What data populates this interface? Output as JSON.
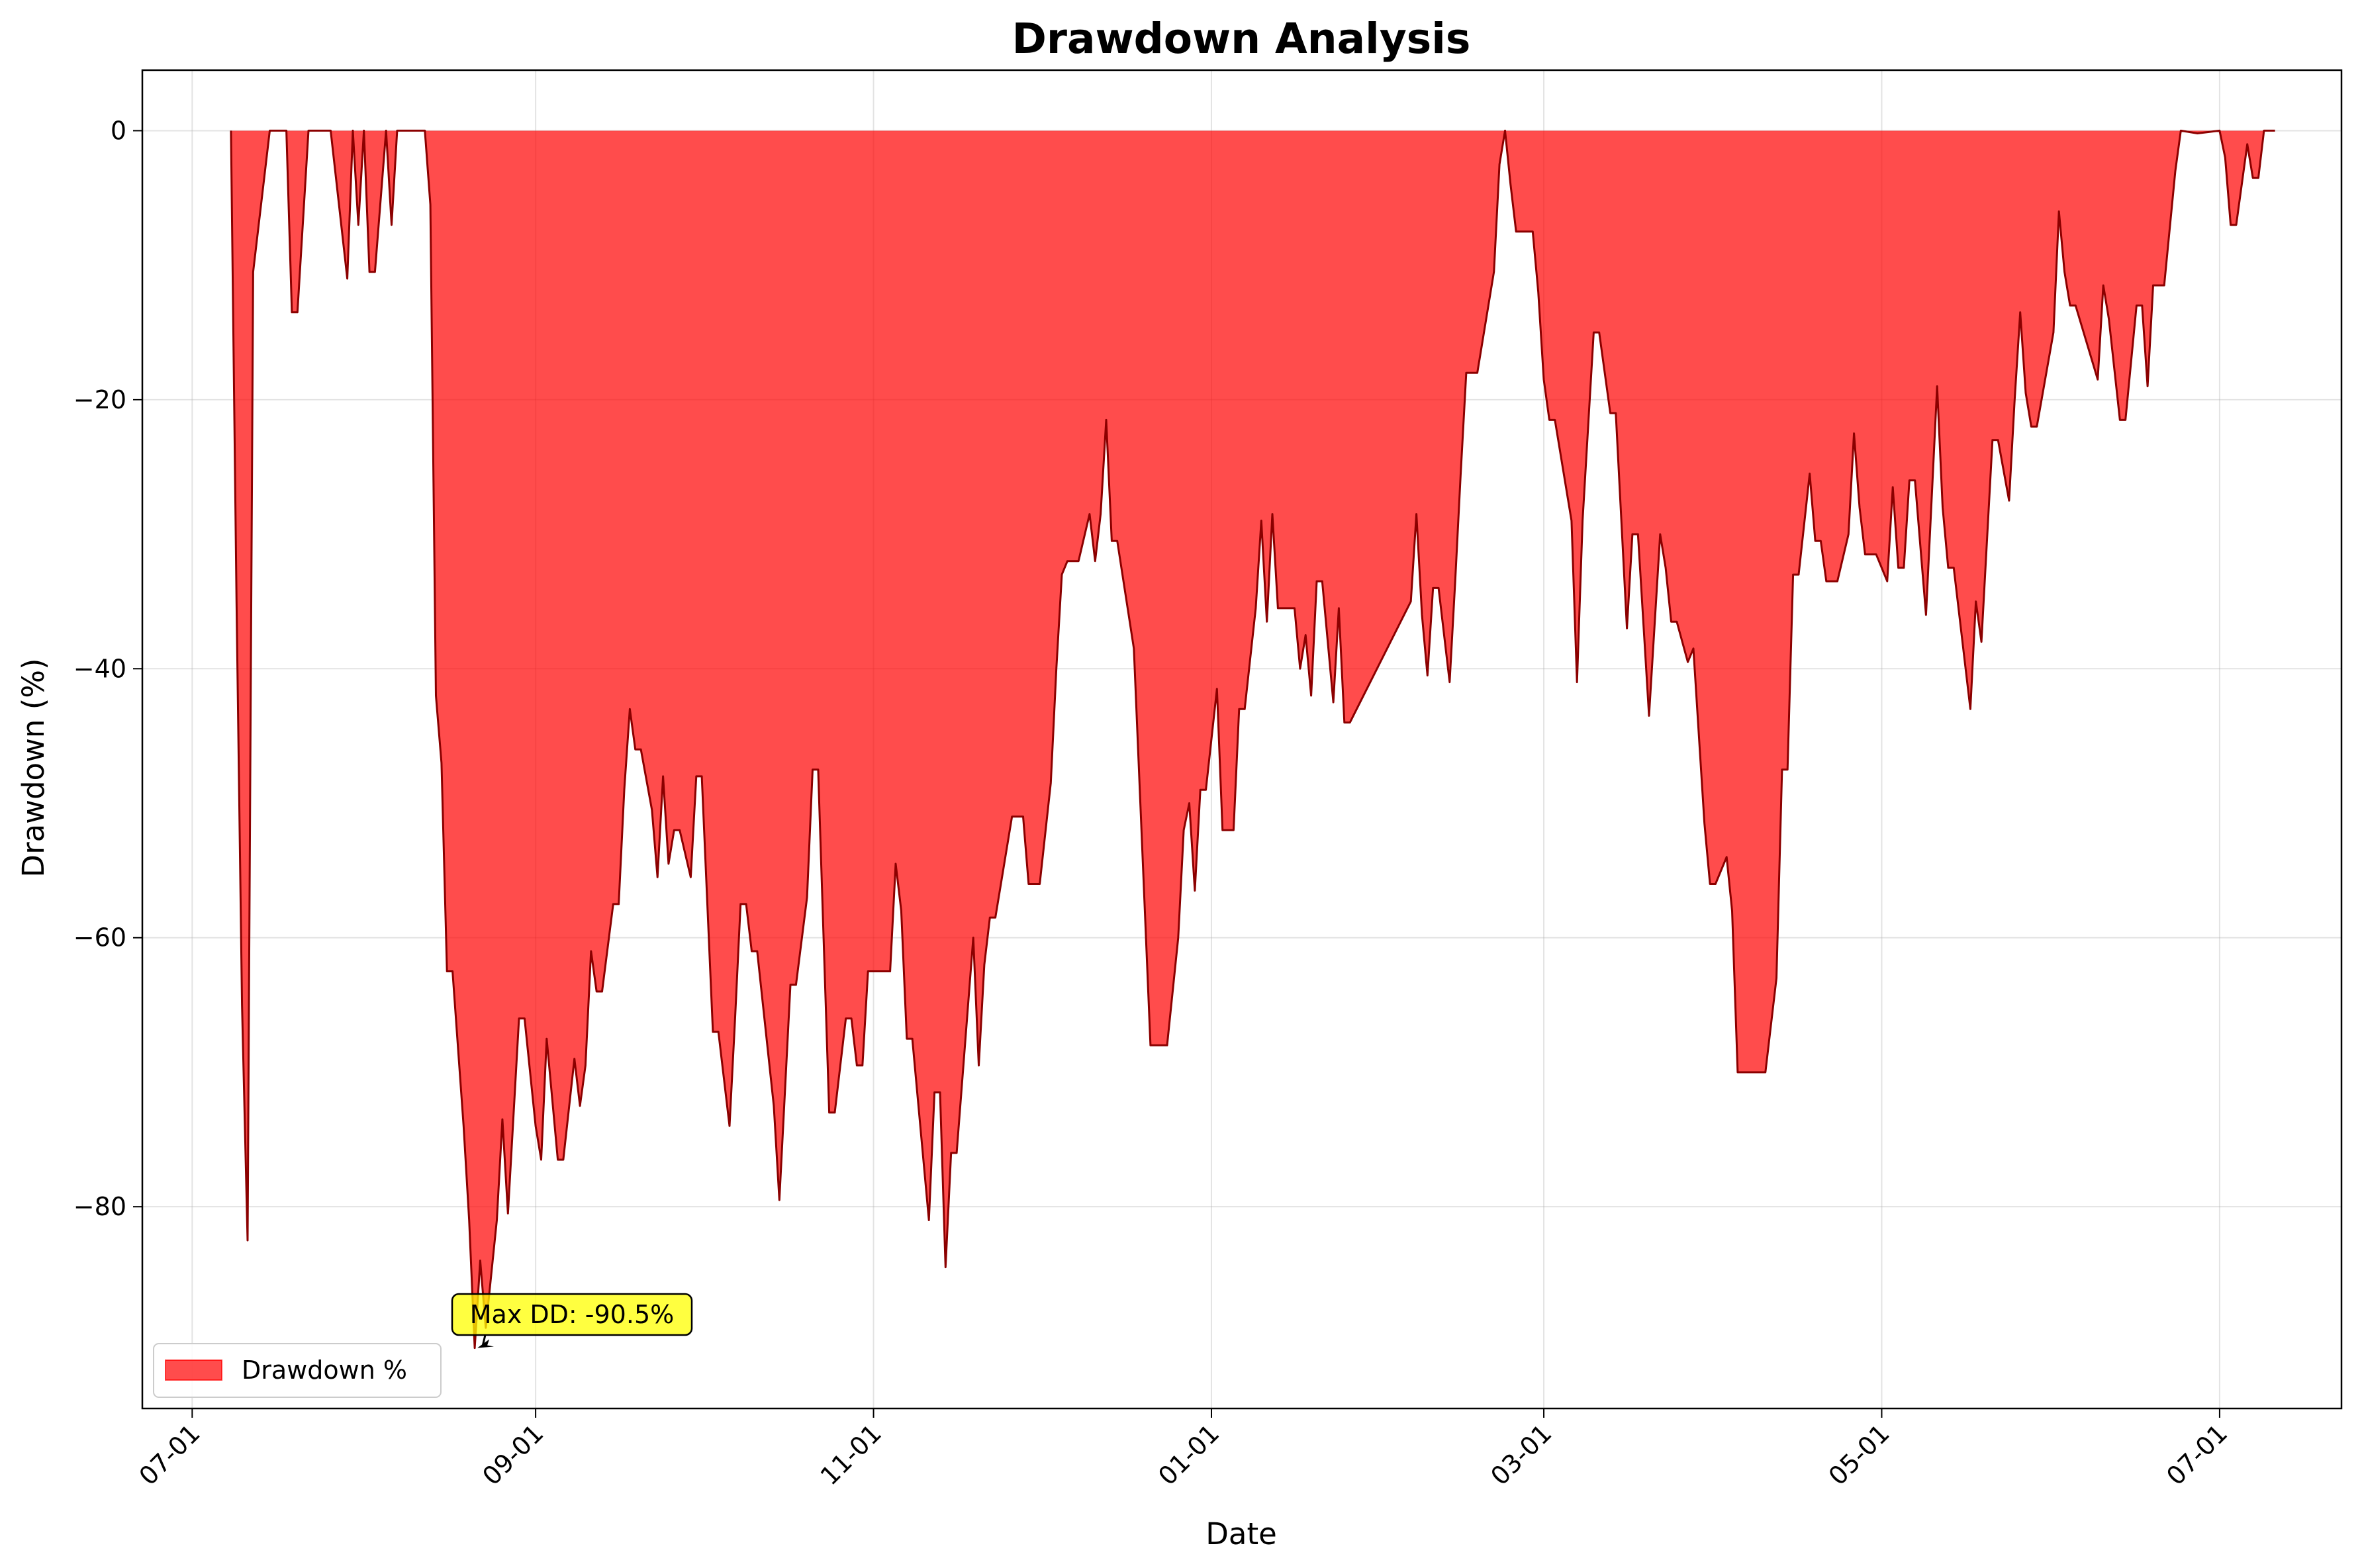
{
  "chart_data": {
    "type": "area",
    "title": "Drawdown Analysis",
    "xlabel": "Date",
    "ylabel": "Drawdown (%)",
    "x_ticks": [
      "07-01",
      "09-01",
      "11-01",
      "01-01",
      "03-01",
      "05-01",
      "07-01"
    ],
    "y_ticks": [
      0,
      -20,
      -40,
      -60,
      -80
    ],
    "ylim": [
      -95,
      4.5
    ],
    "grid": true,
    "legend_position": "lower-left",
    "series": [
      {
        "name": "Drawdown %",
        "fill_color": "#ff0000",
        "fill_opacity": 0.7,
        "line_color": "#8b0000",
        "points": [
          [
            "2023-07-08",
            0
          ],
          [
            "2023-07-09",
            -35
          ],
          [
            "2023-07-10",
            -65
          ],
          [
            "2023-07-11",
            -82.5
          ],
          [
            "2023-07-12",
            -10.5
          ],
          [
            "2023-07-15",
            0
          ],
          [
            "2023-07-18",
            0
          ],
          [
            "2023-07-19",
            -13.5
          ],
          [
            "2023-07-20",
            -13.5
          ],
          [
            "2023-07-22",
            0
          ],
          [
            "2023-07-26",
            0
          ],
          [
            "2023-07-29",
            -11
          ],
          [
            "2023-07-30",
            0
          ],
          [
            "2023-07-31",
            -7
          ],
          [
            "2023-08-01",
            0
          ],
          [
            "2023-08-02",
            -10.5
          ],
          [
            "2023-08-03",
            -10.5
          ],
          [
            "2023-08-05",
            0
          ],
          [
            "2023-08-06",
            -7
          ],
          [
            "2023-08-07",
            0
          ],
          [
            "2023-08-10",
            0
          ],
          [
            "2023-08-12",
            0
          ],
          [
            "2023-08-13",
            -5.5
          ],
          [
            "2023-08-14",
            -42
          ],
          [
            "2023-08-15",
            -47
          ],
          [
            "2023-08-16",
            -62.5
          ],
          [
            "2023-08-17",
            -62.5
          ],
          [
            "2023-08-19",
            -74
          ],
          [
            "2023-08-20",
            -81
          ],
          [
            "2023-08-21",
            -90.5
          ],
          [
            "2023-08-22",
            -84
          ],
          [
            "2023-08-23",
            -89
          ],
          [
            "2023-08-25",
            -81
          ],
          [
            "2023-08-26",
            -73.5
          ],
          [
            "2023-08-27",
            -80.5
          ],
          [
            "2023-08-29",
            -66
          ],
          [
            "2023-08-30",
            -66
          ],
          [
            "2023-09-01",
            -74
          ],
          [
            "2023-09-02",
            -76.5
          ],
          [
            "2023-09-03",
            -67.5
          ],
          [
            "2023-09-05",
            -76.5
          ],
          [
            "2023-09-06",
            -76.5
          ],
          [
            "2023-09-08",
            -69
          ],
          [
            "2023-09-09",
            -72.5
          ],
          [
            "2023-09-10",
            -69.5
          ],
          [
            "2023-09-11",
            -61
          ],
          [
            "2023-09-12",
            -64
          ],
          [
            "2023-09-13",
            -64
          ],
          [
            "2023-09-15",
            -57.5
          ],
          [
            "2023-09-16",
            -57.5
          ],
          [
            "2023-09-17",
            -49
          ],
          [
            "2023-09-18",
            -43
          ],
          [
            "2023-09-19",
            -46
          ],
          [
            "2023-09-20",
            -46
          ],
          [
            "2023-09-22",
            -50.5
          ],
          [
            "2023-09-23",
            -55.5
          ],
          [
            "2023-09-24",
            -48
          ],
          [
            "2023-09-25",
            -54.5
          ],
          [
            "2023-09-26",
            -52
          ],
          [
            "2023-09-27",
            -52
          ],
          [
            "2023-09-29",
            -55.5
          ],
          [
            "2023-09-30",
            -48
          ],
          [
            "2023-10-01",
            -48
          ],
          [
            "2023-10-03",
            -67
          ],
          [
            "2023-10-04",
            -67
          ],
          [
            "2023-10-06",
            -74
          ],
          [
            "2023-10-07",
            -66
          ],
          [
            "2023-10-08",
            -57.5
          ],
          [
            "2023-10-09",
            -57.5
          ],
          [
            "2023-10-10",
            -61
          ],
          [
            "2023-10-11",
            -61
          ],
          [
            "2023-10-14",
            -72.5
          ],
          [
            "2023-10-15",
            -79.5
          ],
          [
            "2023-10-17",
            -63.5
          ],
          [
            "2023-10-18",
            -63.5
          ],
          [
            "2023-10-20",
            -57
          ],
          [
            "2023-10-21",
            -47.5
          ],
          [
            "2023-10-22",
            -47.5
          ],
          [
            "2023-10-24",
            -73
          ],
          [
            "2023-10-25",
            -73
          ],
          [
            "2023-10-27",
            -66
          ],
          [
            "2023-10-28",
            -66
          ],
          [
            "2023-10-29",
            -69.5
          ],
          [
            "2023-10-30",
            -69.5
          ],
          [
            "2023-10-31",
            -62.5
          ],
          [
            "2023-11-01",
            -62.5
          ],
          [
            "2023-11-04",
            -62.5
          ],
          [
            "2023-11-05",
            -54.5
          ],
          [
            "2023-11-06",
            -58
          ],
          [
            "2023-11-07",
            -67.5
          ],
          [
            "2023-11-08",
            -67.5
          ],
          [
            "2023-11-11",
            -81
          ],
          [
            "2023-11-12",
            -71.5
          ],
          [
            "2023-11-13",
            -71.5
          ],
          [
            "2023-11-14",
            -84.5
          ],
          [
            "2023-11-15",
            -76
          ],
          [
            "2023-11-16",
            -76
          ],
          [
            "2023-11-19",
            -60
          ],
          [
            "2023-11-20",
            -69.5
          ],
          [
            "2023-11-21",
            -62
          ],
          [
            "2023-11-22",
            -58.5
          ],
          [
            "2023-11-23",
            -58.5
          ],
          [
            "2023-11-26",
            -51
          ],
          [
            "2023-11-27",
            -51
          ],
          [
            "2023-11-28",
            -51
          ],
          [
            "2023-11-29",
            -56
          ],
          [
            "2023-11-30",
            -56
          ],
          [
            "2023-12-01",
            -56
          ],
          [
            "2023-12-03",
            -48.5
          ],
          [
            "2023-12-04",
            -40
          ],
          [
            "2023-12-05",
            -33
          ],
          [
            "2023-12-06",
            -32
          ],
          [
            "2023-12-07",
            -32
          ],
          [
            "2023-12-08",
            -32
          ],
          [
            "2023-12-10",
            -28.5
          ],
          [
            "2023-12-11",
            -32
          ],
          [
            "2023-12-12",
            -28.5
          ],
          [
            "2023-12-13",
            -21.5
          ],
          [
            "2023-12-14",
            -30.5
          ],
          [
            "2023-12-15",
            -30.5
          ],
          [
            "2023-12-18",
            -38.5
          ],
          [
            "2023-12-21",
            -68
          ],
          [
            "2023-12-22",
            -68
          ],
          [
            "2023-12-24",
            -68
          ],
          [
            "2023-12-26",
            -60
          ],
          [
            "2023-12-27",
            -52
          ],
          [
            "2023-12-28",
            -50
          ],
          [
            "2023-12-29",
            -56.5
          ],
          [
            "2023-12-30",
            -49
          ],
          [
            "2023-12-31",
            -49
          ],
          [
            "2024-01-02",
            -41.5
          ],
          [
            "2024-01-03",
            -52
          ],
          [
            "2024-01-04",
            -52
          ],
          [
            "2024-01-05",
            -52
          ],
          [
            "2024-01-06",
            -43
          ],
          [
            "2024-01-07",
            -43
          ],
          [
            "2024-01-09",
            -35.5
          ],
          [
            "2024-01-10",
            -29
          ],
          [
            "2024-01-11",
            -36.5
          ],
          [
            "2024-01-12",
            -28.5
          ],
          [
            "2024-01-13",
            -35.5
          ],
          [
            "2024-01-14",
            -35.5
          ],
          [
            "2024-01-16",
            -35.5
          ],
          [
            "2024-01-17",
            -40
          ],
          [
            "2024-01-18",
            -37.5
          ],
          [
            "2024-01-19",
            -42
          ],
          [
            "2024-01-20",
            -33.5
          ],
          [
            "2024-01-21",
            -33.5
          ],
          [
            "2024-01-23",
            -42.5
          ],
          [
            "2024-01-24",
            -35.5
          ],
          [
            "2024-01-25",
            -44
          ],
          [
            "2024-01-26",
            -44
          ],
          [
            "2024-02-06",
            -35
          ],
          [
            "2024-02-07",
            -28.5
          ],
          [
            "2024-02-08",
            -36
          ],
          [
            "2024-02-09",
            -40.5
          ],
          [
            "2024-02-10",
            -34
          ],
          [
            "2024-02-11",
            -34
          ],
          [
            "2024-02-13",
            -41
          ],
          [
            "2024-02-14",
            -33.5
          ],
          [
            "2024-02-15",
            -25.5
          ],
          [
            "2024-02-16",
            -18
          ],
          [
            "2024-02-17",
            -18
          ],
          [
            "2024-02-18",
            -18
          ],
          [
            "2024-02-21",
            -10.5
          ],
          [
            "2024-02-22",
            -2.5
          ],
          [
            "2024-02-23",
            0
          ],
          [
            "2024-02-24",
            -4
          ],
          [
            "2024-02-25",
            -7.5
          ],
          [
            "2024-02-26",
            -7.5
          ],
          [
            "2024-02-28",
            -7.5
          ],
          [
            "2024-02-29",
            -12
          ],
          [
            "2024-03-01",
            -18.5
          ],
          [
            "2024-03-02",
            -21.5
          ],
          [
            "2024-03-03",
            -21.5
          ],
          [
            "2024-03-06",
            -29
          ],
          [
            "2024-03-07",
            -41
          ],
          [
            "2024-03-08",
            -29
          ],
          [
            "2024-03-10",
            -15
          ],
          [
            "2024-03-11",
            -15
          ],
          [
            "2024-03-13",
            -21
          ],
          [
            "2024-03-14",
            -21
          ],
          [
            "2024-03-16",
            -37
          ],
          [
            "2024-03-17",
            -30
          ],
          [
            "2024-03-18",
            -30
          ],
          [
            "2024-03-20",
            -43.5
          ],
          [
            "2024-03-22",
            -30
          ],
          [
            "2024-03-23",
            -32.5
          ],
          [
            "2024-03-24",
            -36.5
          ],
          [
            "2024-03-25",
            -36.5
          ],
          [
            "2024-03-27",
            -39.5
          ],
          [
            "2024-03-28",
            -38.5
          ],
          [
            "2024-03-30",
            -51.5
          ],
          [
            "2024-03-31",
            -56
          ],
          [
            "2024-04-01",
            -56
          ],
          [
            "2024-04-03",
            -54
          ],
          [
            "2024-04-04",
            -58
          ],
          [
            "2024-04-05",
            -70
          ],
          [
            "2024-04-06",
            -70
          ],
          [
            "2024-04-10",
            -70
          ],
          [
            "2024-04-12",
            -63
          ],
          [
            "2024-04-13",
            -47.5
          ],
          [
            "2024-04-14",
            -47.5
          ],
          [
            "2024-04-15",
            -33
          ],
          [
            "2024-04-16",
            -33
          ],
          [
            "2024-04-18",
            -25.5
          ],
          [
            "2024-04-19",
            -30.5
          ],
          [
            "2024-04-20",
            -30.5
          ],
          [
            "2024-04-21",
            -33.5
          ],
          [
            "2024-04-22",
            -33.5
          ],
          [
            "2024-04-23",
            -33.5
          ],
          [
            "2024-04-25",
            -30
          ],
          [
            "2024-04-26",
            -22.5
          ],
          [
            "2024-04-27",
            -28
          ],
          [
            "2024-04-28",
            -31.5
          ],
          [
            "2024-04-29",
            -31.5
          ],
          [
            "2024-04-30",
            -31.5
          ],
          [
            "2024-05-02",
            -33.5
          ],
          [
            "2024-05-03",
            -26.5
          ],
          [
            "2024-05-04",
            -32.5
          ],
          [
            "2024-05-05",
            -32.5
          ],
          [
            "2024-05-06",
            -26
          ],
          [
            "2024-05-07",
            -26
          ],
          [
            "2024-05-09",
            -36
          ],
          [
            "2024-05-11",
            -19
          ],
          [
            "2024-05-12",
            -28
          ],
          [
            "2024-05-13",
            -32.5
          ],
          [
            "2024-05-14",
            -32.5
          ],
          [
            "2024-05-17",
            -43
          ],
          [
            "2024-05-18",
            -35
          ],
          [
            "2024-05-19",
            -38
          ],
          [
            "2024-05-21",
            -23
          ],
          [
            "2024-05-22",
            -23
          ],
          [
            "2024-05-24",
            -27.5
          ],
          [
            "2024-05-25",
            -20
          ],
          [
            "2024-05-26",
            -13.5
          ],
          [
            "2024-05-27",
            -19.5
          ],
          [
            "2024-05-28",
            -22
          ],
          [
            "2024-05-29",
            -22
          ],
          [
            "2024-06-01",
            -15
          ],
          [
            "2024-06-02",
            -6
          ],
          [
            "2024-06-03",
            -10.5
          ],
          [
            "2024-06-04",
            -13
          ],
          [
            "2024-06-05",
            -13
          ],
          [
            "2024-06-09",
            -18.5
          ],
          [
            "2024-06-10",
            -11.5
          ],
          [
            "2024-06-11",
            -14
          ],
          [
            "2024-06-13",
            -21.5
          ],
          [
            "2024-06-14",
            -21.5
          ],
          [
            "2024-06-16",
            -13
          ],
          [
            "2024-06-17",
            -13
          ],
          [
            "2024-06-18",
            -19
          ],
          [
            "2024-06-19",
            -11.5
          ],
          [
            "2024-06-20",
            -11.5
          ],
          [
            "2024-06-21",
            -11.5
          ],
          [
            "2024-06-23",
            -3
          ],
          [
            "2024-06-24",
            0
          ],
          [
            "2024-06-27",
            -0.2
          ],
          [
            "2024-07-01",
            0
          ],
          [
            "2024-07-02",
            -2
          ],
          [
            "2024-07-03",
            -7
          ],
          [
            "2024-07-04",
            -7
          ],
          [
            "2024-07-06",
            -1
          ],
          [
            "2024-07-07",
            -3.5
          ],
          [
            "2024-07-08",
            -3.5
          ],
          [
            "2024-07-09",
            0
          ],
          [
            "2024-07-11",
            0
          ]
        ]
      }
    ],
    "annotation": {
      "text": "Max DD: -90.5%",
      "target": [
        "2023-08-21",
        -90.5
      ],
      "box_color": "#ffff00"
    },
    "axis_domain": {
      "xmin": "2023-06-22",
      "xmax": "2024-07-23"
    },
    "tick_dates": [
      "2023-07-01",
      "2023-09-01",
      "2023-11-01",
      "2024-01-01",
      "2024-03-01",
      "2024-05-01",
      "2024-07-01"
    ]
  }
}
